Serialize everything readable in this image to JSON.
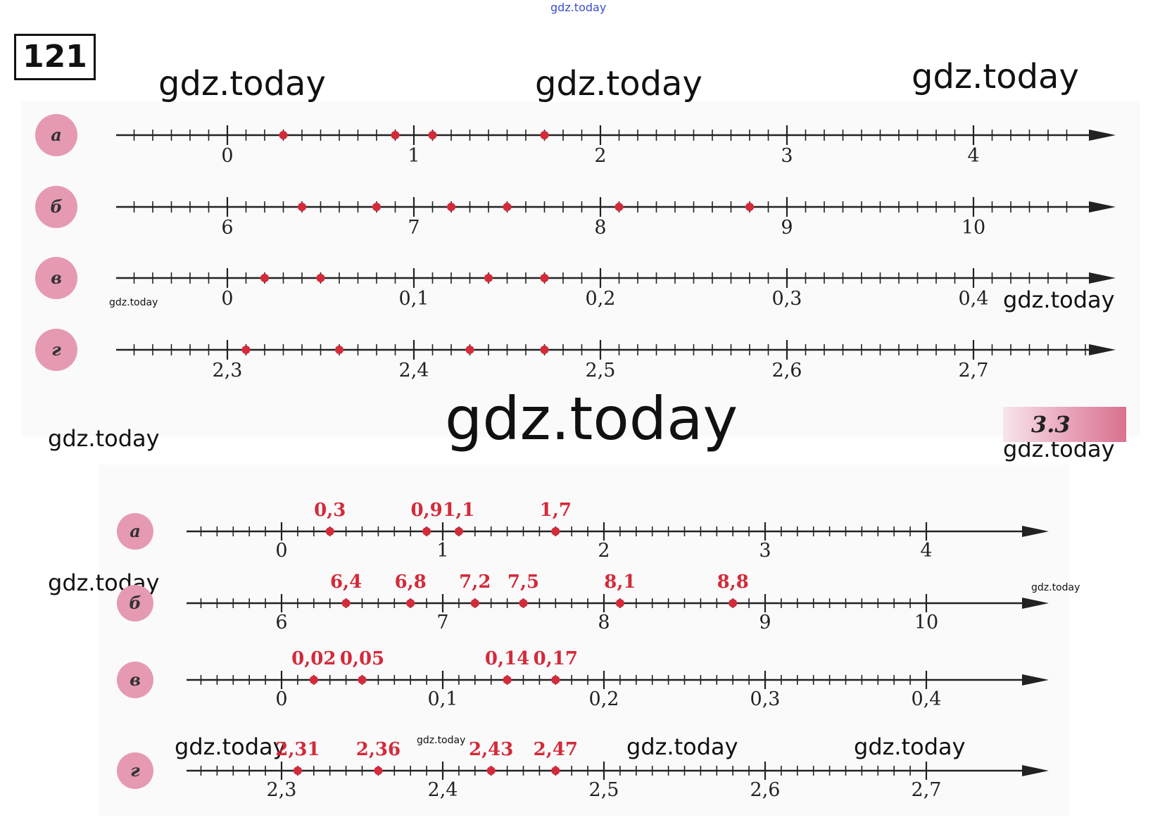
{
  "page": {
    "task_number": "121",
    "section_badge": "3.3",
    "watermark": "gdz.today"
  },
  "colors": {
    "axis": "#222222",
    "point": "#d42a3a",
    "badge_circle": "#e59ab2",
    "badge_text": "#3a3a3a"
  },
  "task_lines": [
    {
      "label": "а",
      "start": 0,
      "step": 0.1,
      "major_every": 10,
      "tick_count": 52,
      "before": 6,
      "major_labels": [
        "0",
        "1",
        "2",
        "3",
        "4"
      ],
      "points": [
        0.3,
        0.9,
        1.1,
        1.7
      ]
    },
    {
      "label": "б",
      "start": 6,
      "step": 0.1,
      "major_every": 10,
      "tick_count": 52,
      "before": 6,
      "major_labels": [
        "6",
        "7",
        "8",
        "9",
        "10"
      ],
      "points": [
        6.4,
        6.8,
        7.2,
        7.5,
        8.1,
        8.8
      ]
    },
    {
      "label": "в",
      "start": 0,
      "step": 0.01,
      "major_every": 10,
      "tick_count": 52,
      "before": 6,
      "major_labels": [
        "0",
        "0,1",
        "0,2",
        "0,3",
        "0,4"
      ],
      "points": [
        0.02,
        0.05,
        0.14,
        0.17
      ]
    },
    {
      "label": "г",
      "start": 2.3,
      "step": 0.01,
      "major_every": 10,
      "tick_count": 52,
      "before": 5,
      "major_labels": [
        "2,3",
        "2,4",
        "2,5",
        "2,6",
        "2,7"
      ],
      "points": [
        2.31,
        2.36,
        2.43,
        2.47
      ]
    }
  ],
  "answer_lines": [
    {
      "label": "а",
      "start": 0,
      "step": 0.1,
      "major_every": 10,
      "tick_count": 46,
      "before": 5,
      "major_labels": [
        "0",
        "1",
        "2",
        "3",
        "4"
      ],
      "points": [
        0.3,
        0.9,
        1.1,
        1.7
      ],
      "point_labels": [
        "0,3",
        "0,9",
        "1,1",
        "1,7"
      ]
    },
    {
      "label": "б",
      "start": 6,
      "step": 0.1,
      "major_every": 10,
      "tick_count": 46,
      "before": 5,
      "major_labels": [
        "6",
        "7",
        "8",
        "9",
        "10"
      ],
      "points": [
        6.4,
        6.8,
        7.2,
        7.5,
        8.1,
        8.8
      ],
      "point_labels": [
        "6,4",
        "6,8",
        "7,2",
        "7,5",
        "8,1",
        "8,8"
      ]
    },
    {
      "label": "в",
      "start": 0,
      "step": 0.01,
      "major_every": 10,
      "tick_count": 46,
      "before": 5,
      "major_labels": [
        "0",
        "0,1",
        "0,2",
        "0,3",
        "0,4"
      ],
      "points": [
        0.02,
        0.05,
        0.14,
        0.17
      ],
      "point_labels": [
        "0,02",
        "0,05",
        "0,14",
        "0,17"
      ]
    },
    {
      "label": "г",
      "start": 2.3,
      "step": 0.01,
      "major_every": 10,
      "tick_count": 46,
      "before": 5,
      "major_labels": [
        "2,3",
        "2,4",
        "2,5",
        "2,6",
        "2,7"
      ],
      "points": [
        2.31,
        2.36,
        2.43,
        2.47
      ],
      "point_labels": [
        "2,31",
        "2,36",
        "2,43",
        "2,47"
      ]
    }
  ]
}
